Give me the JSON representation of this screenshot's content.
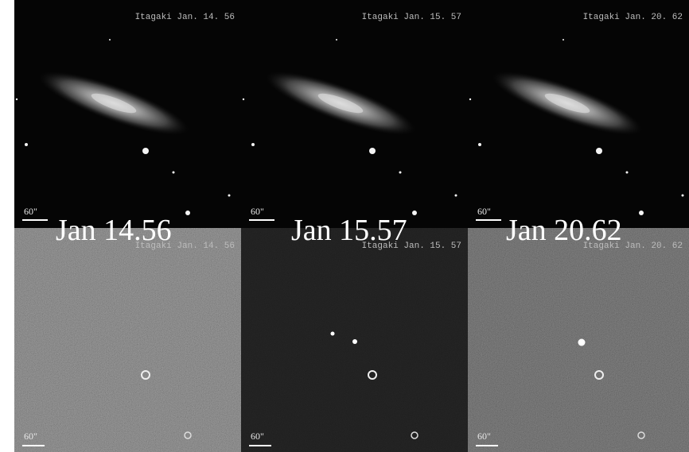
{
  "panels": [
    {
      "label": "Jan 14.56",
      "top": {
        "caption": "Itagaki Jan. 14. 56",
        "scale": "60\""
      },
      "bottom": {
        "caption": "Itagaki Jan. 14. 56",
        "scale": "60\""
      }
    },
    {
      "label": "Jan 15.57",
      "top": {
        "caption": "Itagaki Jan. 15. 57",
        "scale": "60\""
      },
      "bottom": {
        "caption": "Itagaki Jan. 15. 57",
        "scale": "60\""
      }
    },
    {
      "label": "Jan 20.62",
      "top": {
        "caption": "Itagaki Jan. 20. 62",
        "scale": "60\""
      },
      "bottom": {
        "caption": "Itagaki Jan. 20. 62",
        "scale": "60\""
      }
    }
  ]
}
